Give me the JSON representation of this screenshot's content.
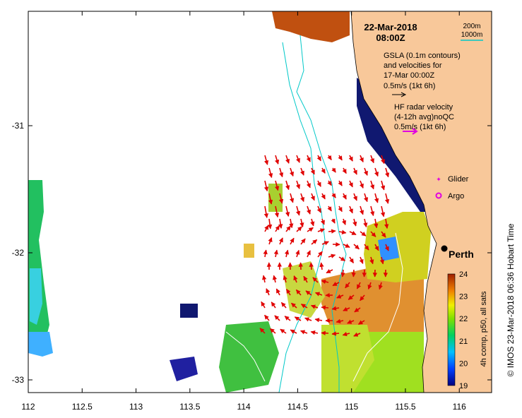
{
  "title": {
    "date": "22-Mar-2018",
    "time": "08:00Z"
  },
  "contour_legend": {
    "depth1": "200m",
    "depth2": "1000m",
    "color1": "#00c8c8",
    "color2": "#00c8c8"
  },
  "gsla_note": [
    "GSLA (0.1m contours)",
    "and velocities for",
    "17-Mar 00:00Z",
    "0.5m/s (1kt 6h)"
  ],
  "hf_note": [
    "HF radar velocity",
    "(4-12h avg)noQC",
    "0.5m/s (1kt 6h)"
  ],
  "markers": {
    "glider": "Glider",
    "argo": "Argo",
    "glider_color": "#e000e0",
    "argo_color": "#e000e0"
  },
  "city": {
    "name": "Perth",
    "lon": 115.86,
    "lat": -31.95
  },
  "axes": {
    "x_ticks": [
      "112",
      "112.5",
      "113",
      "113.5",
      "114",
      "114.5",
      "115",
      "115.5",
      "116"
    ],
    "y_ticks": [
      "-31",
      "-32",
      "-33"
    ],
    "xlim": [
      112,
      116.3
    ],
    "ylim": [
      -33.1,
      -30.1
    ]
  },
  "colorbar": {
    "ticks": [
      "24",
      "23",
      "22",
      "21",
      "20",
      "19"
    ],
    "range": [
      19,
      24
    ],
    "label": "4h comp, p50, all sats"
  },
  "credit": "© IMOS 23-Mar-2018 06:36 Hobart Time",
  "colors": {
    "land": "#f8c89a",
    "arrow": "#e00000",
    "contour": "#00c8c8"
  }
}
